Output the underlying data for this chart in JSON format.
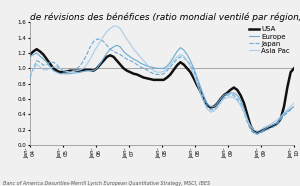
{
  "title": "de révisions des bénéfices (ratio mondial ventilé par région)",
  "source": "Banc of America Desurities-Merrill Lynch European Quantitative Strategy, MSCI, IBES",
  "ylim": [
    0.0,
    1.6
  ],
  "yticks": [
    0.0,
    0.2,
    0.4,
    0.6,
    0.8,
    1.0,
    1.2,
    1.4,
    1.6
  ],
  "xtick_labels": [
    "Jan-\n04",
    "Jan-\n05",
    "Jan-\n06",
    "Jan-\n07",
    "Jan-\n08",
    "Jan-\n08",
    "Jan-\n09",
    "Jan-\n09",
    "Jan-\n10"
  ],
  "legend_labels": [
    "USA",
    "Europe",
    "Japan",
    "Asia Pac"
  ],
  "background_color": "#f0f0f0",
  "hline_y": 1.0,
  "hline_color": "#999999",
  "title_fontsize": 6.5,
  "legend_fontsize": 5,
  "tick_fontsize": 4,
  "source_fontsize": 3.5,
  "n_points": 80,
  "usa": [
    1.18,
    1.22,
    1.25,
    1.22,
    1.18,
    1.12,
    1.06,
    1.0,
    0.97,
    0.95,
    0.96,
    0.96,
    0.97,
    0.97,
    0.97,
    0.97,
    0.98,
    0.98,
    0.98,
    0.97,
    1.0,
    1.05,
    1.1,
    1.15,
    1.17,
    1.15,
    1.1,
    1.05,
    1.0,
    0.97,
    0.95,
    0.93,
    0.92,
    0.9,
    0.88,
    0.87,
    0.86,
    0.85,
    0.85,
    0.85,
    0.85,
    0.88,
    0.92,
    0.98,
    1.04,
    1.08,
    1.05,
    1.0,
    0.95,
    0.87,
    0.78,
    0.7,
    0.6,
    0.52,
    0.49,
    0.5,
    0.54,
    0.6,
    0.65,
    0.68,
    0.72,
    0.75,
    0.72,
    0.65,
    0.55,
    0.4,
    0.25,
    0.18,
    0.16,
    0.18,
    0.2,
    0.22,
    0.24,
    0.26,
    0.28,
    0.34,
    0.5,
    0.75,
    0.95,
    1.0
  ],
  "europe": [
    1.15,
    1.18,
    1.2,
    1.16,
    1.12,
    1.08,
    1.02,
    0.97,
    0.95,
    0.93,
    0.93,
    0.93,
    0.93,
    0.94,
    0.94,
    0.95,
    0.96,
    0.97,
    0.97,
    0.97,
    1.0,
    1.06,
    1.13,
    1.2,
    1.25,
    1.28,
    1.3,
    1.28,
    1.22,
    1.18,
    1.15,
    1.12,
    1.1,
    1.07,
    1.05,
    1.03,
    1.02,
    1.01,
    1.0,
    1.0,
    1.0,
    1.03,
    1.08,
    1.15,
    1.22,
    1.27,
    1.24,
    1.18,
    1.1,
    1.0,
    0.88,
    0.76,
    0.64,
    0.54,
    0.5,
    0.5,
    0.54,
    0.6,
    0.65,
    0.67,
    0.68,
    0.68,
    0.65,
    0.58,
    0.48,
    0.35,
    0.22,
    0.17,
    0.15,
    0.17,
    0.2,
    0.23,
    0.25,
    0.27,
    0.29,
    0.35,
    0.4,
    0.44,
    0.47,
    0.5
  ],
  "japan": [
    0.88,
    1.0,
    1.1,
    1.08,
    1.04,
    1.05,
    1.08,
    1.08,
    1.05,
    1.0,
    0.97,
    0.95,
    0.95,
    0.97,
    1.0,
    1.03,
    1.1,
    1.18,
    1.28,
    1.35,
    1.38,
    1.38,
    1.35,
    1.3,
    1.25,
    1.22,
    1.2,
    1.18,
    1.15,
    1.12,
    1.1,
    1.08,
    1.05,
    1.02,
    1.0,
    0.98,
    0.95,
    0.93,
    0.92,
    0.92,
    0.93,
    0.97,
    1.02,
    1.07,
    1.12,
    1.15,
    1.14,
    1.1,
    1.05,
    0.97,
    0.85,
    0.73,
    0.6,
    0.5,
    0.46,
    0.46,
    0.5,
    0.56,
    0.62,
    0.65,
    0.66,
    0.65,
    0.6,
    0.53,
    0.43,
    0.3,
    0.2,
    0.15,
    0.14,
    0.16,
    0.18,
    0.2,
    0.22,
    0.24,
    0.27,
    0.33,
    0.38,
    0.42,
    0.46,
    0.5
  ],
  "asiapac": [
    0.92,
    0.98,
    1.05,
    1.02,
    0.98,
    0.98,
    1.0,
    1.02,
    1.02,
    1.0,
    0.97,
    0.96,
    0.95,
    0.96,
    0.97,
    0.98,
    1.0,
    1.05,
    1.12,
    1.2,
    1.28,
    1.35,
    1.42,
    1.48,
    1.52,
    1.55,
    1.55,
    1.52,
    1.45,
    1.38,
    1.32,
    1.25,
    1.2,
    1.15,
    1.1,
    1.05,
    1.0,
    0.97,
    0.95,
    0.95,
    0.96,
    1.0,
    1.05,
    1.1,
    1.15,
    1.18,
    1.16,
    1.1,
    1.02,
    0.92,
    0.8,
    0.68,
    0.56,
    0.47,
    0.43,
    0.44,
    0.48,
    0.55,
    0.6,
    0.62,
    0.63,
    0.62,
    0.58,
    0.52,
    0.43,
    0.33,
    0.25,
    0.2,
    0.18,
    0.2,
    0.23,
    0.25,
    0.27,
    0.3,
    0.33,
    0.37,
    0.42,
    0.46,
    0.5,
    0.55
  ]
}
